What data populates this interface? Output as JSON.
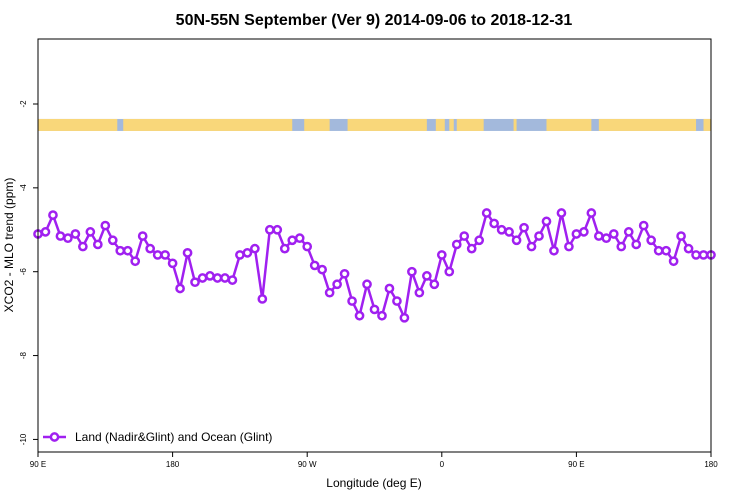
{
  "chart_data": {
    "type": "line",
    "title": "50N-55N September (Ver 9)   2014-09-06 to 2018-12-31",
    "xlabel": "Longitude (deg E)",
    "ylabel": "XCO2 - MLO trend (ppm)",
    "x_ticks": [
      {
        "label": "90 E",
        "value": 90
      },
      {
        "label": "180",
        "value": 180
      },
      {
        "label": "90 W",
        "value": 270
      },
      {
        "label": "0",
        "value": 360
      },
      {
        "label": "90 E",
        "value": 450
      },
      {
        "label": "180",
        "value": 540
      }
    ],
    "y_ticks": [
      -10,
      -8,
      -6,
      -4,
      -2
    ],
    "xlim": [
      90,
      540
    ],
    "ylim": [
      -10.3,
      -0.45
    ],
    "grid": false,
    "legend_position": "bottom-left",
    "colors": {
      "series": "#a020f0",
      "land": "#f9d77a",
      "ocean": "#a3b9dc"
    },
    "series": [
      {
        "name": "Land (Nadir&Glint) and Ocean (Glint)",
        "x": [
          90,
          95,
          100,
          105,
          110,
          115,
          120,
          125,
          130,
          135,
          140,
          145,
          150,
          155,
          160,
          165,
          170,
          175,
          180,
          185,
          190,
          195,
          200,
          205,
          210,
          215,
          220,
          225,
          230,
          235,
          240,
          245,
          250,
          255,
          260,
          265,
          270,
          275,
          280,
          285,
          290,
          295,
          300,
          305,
          310,
          315,
          320,
          325,
          330,
          335,
          340,
          345,
          350,
          355,
          360,
          365,
          370,
          375,
          380,
          385,
          390,
          395,
          400,
          405,
          410,
          415,
          420,
          425,
          430,
          435,
          440,
          445,
          450,
          455,
          460,
          465,
          470,
          475,
          480,
          485,
          490,
          495,
          500,
          505,
          510,
          515,
          520,
          525,
          530,
          535,
          540
        ],
        "y": [
          -5.1,
          -5.05,
          -4.65,
          -5.15,
          -5.2,
          -5.1,
          -5.4,
          -5.05,
          -5.35,
          -4.9,
          -5.25,
          -5.5,
          -5.5,
          -5.75,
          -5.15,
          -5.45,
          -5.6,
          -5.6,
          -5.8,
          -6.4,
          -5.55,
          -6.25,
          -6.15,
          -6.1,
          -6.15,
          -6.15,
          -6.2,
          -5.6,
          -5.55,
          -5.45,
          -6.65,
          -5.0,
          -5.0,
          -5.45,
          -5.25,
          -5.2,
          -5.4,
          -5.85,
          -5.95,
          -6.5,
          -6.3,
          -6.05,
          -6.7,
          -7.05,
          -6.3,
          -6.9,
          -7.05,
          -6.4,
          -6.7,
          -7.1,
          -6.0,
          -6.5,
          -6.1,
          -6.3,
          -5.6,
          -6.0,
          -5.35,
          -5.15,
          -5.45,
          -5.25,
          -4.6,
          -4.85,
          -5.0,
          -5.05,
          -5.25,
          -4.95,
          -5.4,
          -5.15,
          -4.8,
          -5.5,
          -4.6,
          -5.4,
          -5.1,
          -5.05,
          -4.6,
          -5.15,
          -5.2,
          -5.1,
          -5.4,
          -5.05,
          -5.35,
          -4.9,
          -5.25,
          -5.5,
          -5.5,
          -5.75,
          -5.15,
          -5.45,
          -5.6,
          -5.6,
          -5.6
        ]
      }
    ],
    "surface_strip": {
      "label": "land/ocean strip",
      "value": -2.5,
      "land_ranges": [
        [
          90,
          143
        ],
        [
          147,
          260
        ],
        [
          268,
          285
        ],
        [
          297,
          350
        ],
        [
          356,
          362
        ],
        [
          365,
          368
        ],
        [
          370,
          388
        ],
        [
          408,
          410
        ],
        [
          430,
          460
        ],
        [
          465,
          530
        ],
        [
          535,
          540
        ]
      ]
    }
  }
}
